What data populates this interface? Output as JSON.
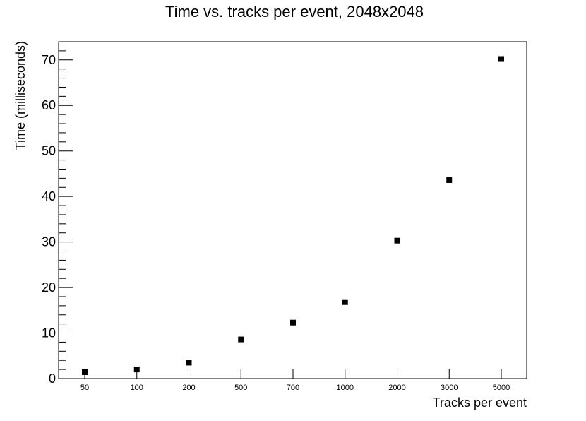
{
  "chart_data": {
    "type": "scatter",
    "title": "Time vs. tracks per event, 2048x2048",
    "xlabel": "Tracks per event",
    "ylabel": "Time (milliseconds)",
    "categories": [
      "50",
      "100",
      "200",
      "500",
      "700",
      "1000",
      "2000",
      "3000",
      "5000"
    ],
    "values": [
      1.4,
      2.0,
      3.5,
      8.6,
      12.3,
      16.8,
      30.3,
      43.6,
      70.2
    ],
    "ylim": [
      0,
      74
    ],
    "yticks": [
      "0",
      "10",
      "20",
      "30",
      "40",
      "50",
      "60",
      "70"
    ],
    "grid": false,
    "marker": "square",
    "marker_color": "#000000"
  }
}
